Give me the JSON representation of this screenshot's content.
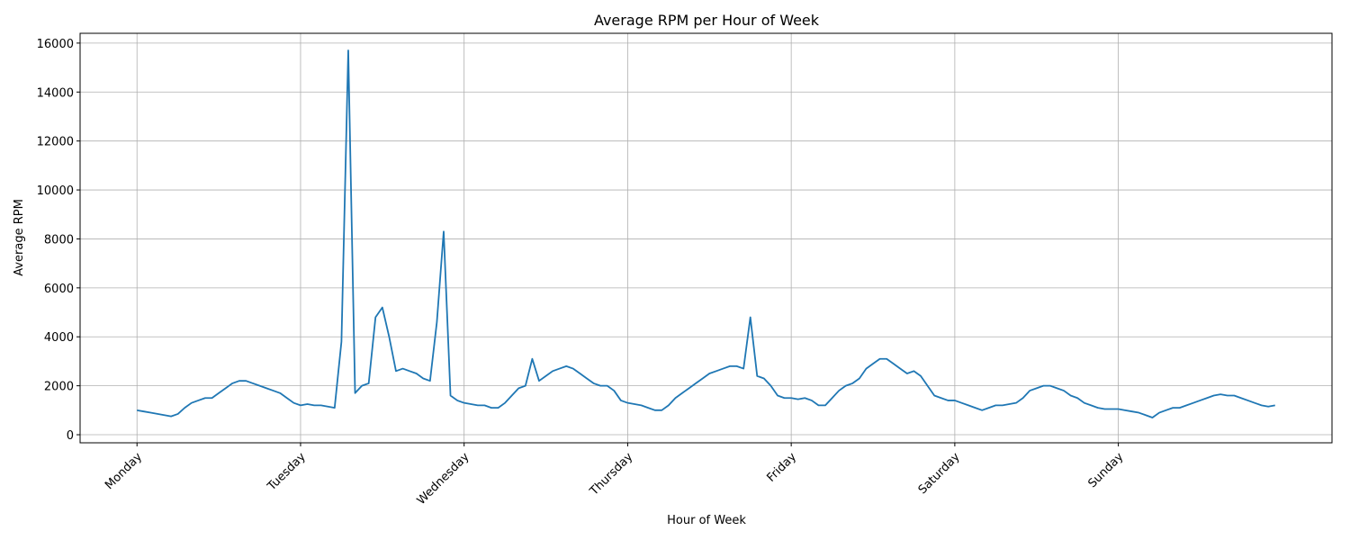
{
  "chart_data": {
    "type": "line",
    "title": "Average RPM per Hour of Week",
    "x_label": "Hour of Week",
    "y_label": "Average RPM",
    "x": [
      0,
      1,
      2,
      3,
      4,
      5,
      6,
      7,
      8,
      9,
      10,
      11,
      12,
      13,
      14,
      15,
      16,
      17,
      18,
      19,
      20,
      21,
      22,
      23,
      24,
      25,
      26,
      27,
      28,
      29,
      30,
      31,
      32,
      33,
      34,
      35,
      36,
      37,
      38,
      39,
      40,
      41,
      42,
      43,
      44,
      45,
      46,
      47,
      48,
      49,
      50,
      51,
      52,
      53,
      54,
      55,
      56,
      57,
      58,
      59,
      60,
      61,
      62,
      63,
      64,
      65,
      66,
      67,
      68,
      69,
      70,
      71,
      72,
      73,
      74,
      75,
      76,
      77,
      78,
      79,
      80,
      81,
      82,
      83,
      84,
      85,
      86,
      87,
      88,
      89,
      90,
      91,
      92,
      93,
      94,
      95,
      96,
      97,
      98,
      99,
      100,
      101,
      102,
      103,
      104,
      105,
      106,
      107,
      108,
      109,
      110,
      111,
      112,
      113,
      114,
      115,
      116,
      117,
      118,
      119,
      120,
      121,
      122,
      123,
      124,
      125,
      126,
      127,
      128,
      129,
      130,
      131,
      132,
      133,
      134,
      135,
      136,
      137,
      138,
      139,
      140,
      141,
      142,
      143,
      144,
      145,
      146,
      147,
      148,
      149,
      150,
      151,
      152,
      153,
      154,
      155,
      156,
      157,
      158,
      159,
      160,
      161,
      162,
      163,
      164,
      165,
      166,
      167
    ],
    "series": [
      {
        "name": "Average RPM",
        "color": "#1f77b4",
        "values": [
          1000,
          950,
          900,
          850,
          800,
          750,
          850,
          1100,
          1300,
          1400,
          1500,
          1500,
          1700,
          1900,
          2100,
          2200,
          2200,
          2100,
          2000,
          1900,
          1800,
          1700,
          1500,
          1300,
          1200,
          1250,
          1200,
          1200,
          1150,
          1100,
          3800,
          15700,
          1700,
          2000,
          2100,
          4800,
          5200,
          4000,
          2600,
          2700,
          2600,
          2500,
          2300,
          2200,
          4600,
          8300,
          1600,
          1400,
          1300,
          1250,
          1200,
          1200,
          1100,
          1100,
          1300,
          1600,
          1900,
          2000,
          3100,
          2200,
          2400,
          2600,
          2700,
          2800,
          2700,
          2500,
          2300,
          2100,
          2000,
          2000,
          1800,
          1400,
          1300,
          1250,
          1200,
          1100,
          1000,
          1000,
          1200,
          1500,
          1700,
          1900,
          2100,
          2300,
          2500,
          2600,
          2700,
          2800,
          2800,
          2700,
          4800,
          2400,
          2300,
          2000,
          1600,
          1500,
          1500,
          1450,
          1500,
          1400,
          1200,
          1200,
          1500,
          1800,
          2000,
          2100,
          2300,
          2700,
          2900,
          3100,
          3100,
          2900,
          2700,
          2500,
          2600,
          2400,
          2000,
          1600,
          1500,
          1400,
          1400,
          1300,
          1200,
          1100,
          1000,
          1100,
          1200,
          1200,
          1250,
          1300,
          1500,
          1800,
          1900,
          2000,
          2000,
          1900,
          1800,
          1600,
          1500,
          1300,
          1200,
          1100,
          1050,
          1050,
          1050,
          1000,
          950,
          900,
          800,
          700,
          900,
          1000,
          1100,
          1100,
          1200,
          1300,
          1400,
          1500,
          1600,
          1650,
          1600,
          1600,
          1500,
          1400,
          1300,
          1200,
          1150,
          1200
        ]
      }
    ],
    "xlim": [
      -8.35,
      175.35
    ],
    "ylim": [
      -330,
      16400
    ],
    "xticks": [
      {
        "value": 0,
        "label": "Monday"
      },
      {
        "value": 24,
        "label": "Tuesday"
      },
      {
        "value": 48,
        "label": "Wednesday"
      },
      {
        "value": 72,
        "label": "Thursday"
      },
      {
        "value": 96,
        "label": "Friday"
      },
      {
        "value": 120,
        "label": "Saturday"
      },
      {
        "value": 144,
        "label": "Sunday"
      }
    ],
    "yticks": [
      0,
      2000,
      4000,
      6000,
      8000,
      10000,
      12000,
      14000,
      16000
    ],
    "grid": true
  }
}
